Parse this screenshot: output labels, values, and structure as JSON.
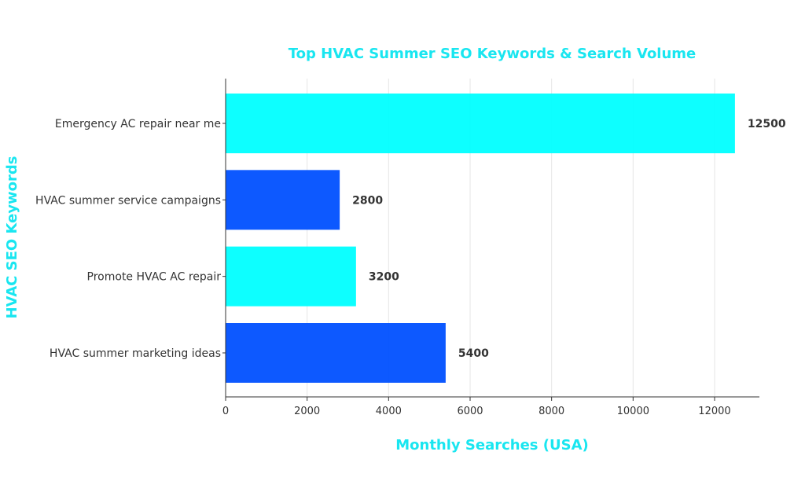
{
  "chart_data": {
    "type": "bar",
    "orientation": "horizontal",
    "title": "Top HVAC Summer SEO Keywords & Search Volume",
    "xlabel": "Monthly Searches (USA)",
    "ylabel": "HVAC SEO Keywords",
    "categories": [
      "Emergency AC repair near me",
      "HVAC summer service campaigns",
      "Promote HVAC AC repair",
      "HVAC summer marketing ideas"
    ],
    "values": [
      12500,
      2800,
      3200,
      5400
    ],
    "value_labels": [
      "12500",
      "2800",
      "3200",
      "5400"
    ],
    "bar_colors": [
      "#00ffff",
      "#0050ff",
      "#00ffff",
      "#0050ff"
    ],
    "xlim": [
      0,
      13100
    ],
    "xticks": [
      0,
      2000,
      4000,
      6000,
      8000,
      10000,
      12000
    ],
    "xtick_labels": [
      "0",
      "2000",
      "4000",
      "6000",
      "8000",
      "10000",
      "12000"
    ],
    "grid": "vertical",
    "title_color": "#19e6f0",
    "axis_label_color": "#19e6f0"
  }
}
